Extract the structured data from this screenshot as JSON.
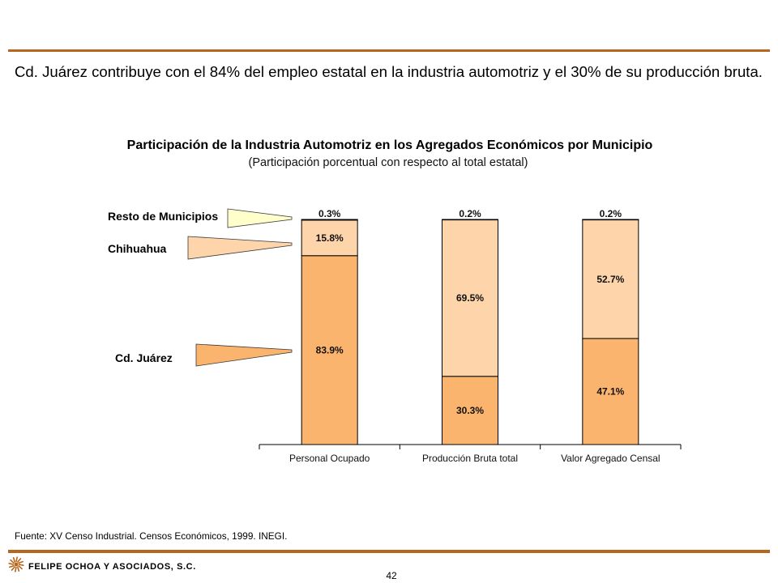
{
  "headline": "Cd. Juárez contribuye con el 84% del empleo estatal en la industria automotriz y el 30% de su producción bruta.",
  "colors": {
    "rule": "#B5671E"
  },
  "chart_data": {
    "type": "bar",
    "stacked": true,
    "title": "Participación de la Industria Automotriz en los Agregados Económicos por Municipio",
    "subtitle": "(Participación porcentual con respecto al total estatal)",
    "categories": [
      "Personal Ocupado",
      "Producción Bruta total",
      "Valor Agregado Censal"
    ],
    "series": [
      {
        "name": "Cd. Juárez",
        "values": [
          83.9,
          30.3,
          47.1
        ],
        "labels": [
          "83.9%",
          "30.3%",
          "47.1%"
        ],
        "color": "#FBB46E"
      },
      {
        "name": "Chihuahua",
        "values": [
          15.8,
          69.5,
          52.7
        ],
        "labels": [
          "15.8%",
          "69.5%",
          "52.7%"
        ],
        "color": "#FED4AA"
      },
      {
        "name": "Resto de Municipios",
        "values": [
          0.3,
          0.2,
          0.2
        ],
        "labels": [
          "0.3%",
          "0.2%",
          "0.2%"
        ],
        "color": "#FFFFCC"
      }
    ],
    "ylim": [
      0,
      100
    ],
    "grid": false,
    "legend": "left"
  },
  "footer": {
    "source": "Fuente: XV Censo Industrial. Censos Económicos, 1999. INEGI.",
    "company": "FELIPE OCHOA Y ASOCIADOS, S.C.",
    "page_number": "42"
  }
}
